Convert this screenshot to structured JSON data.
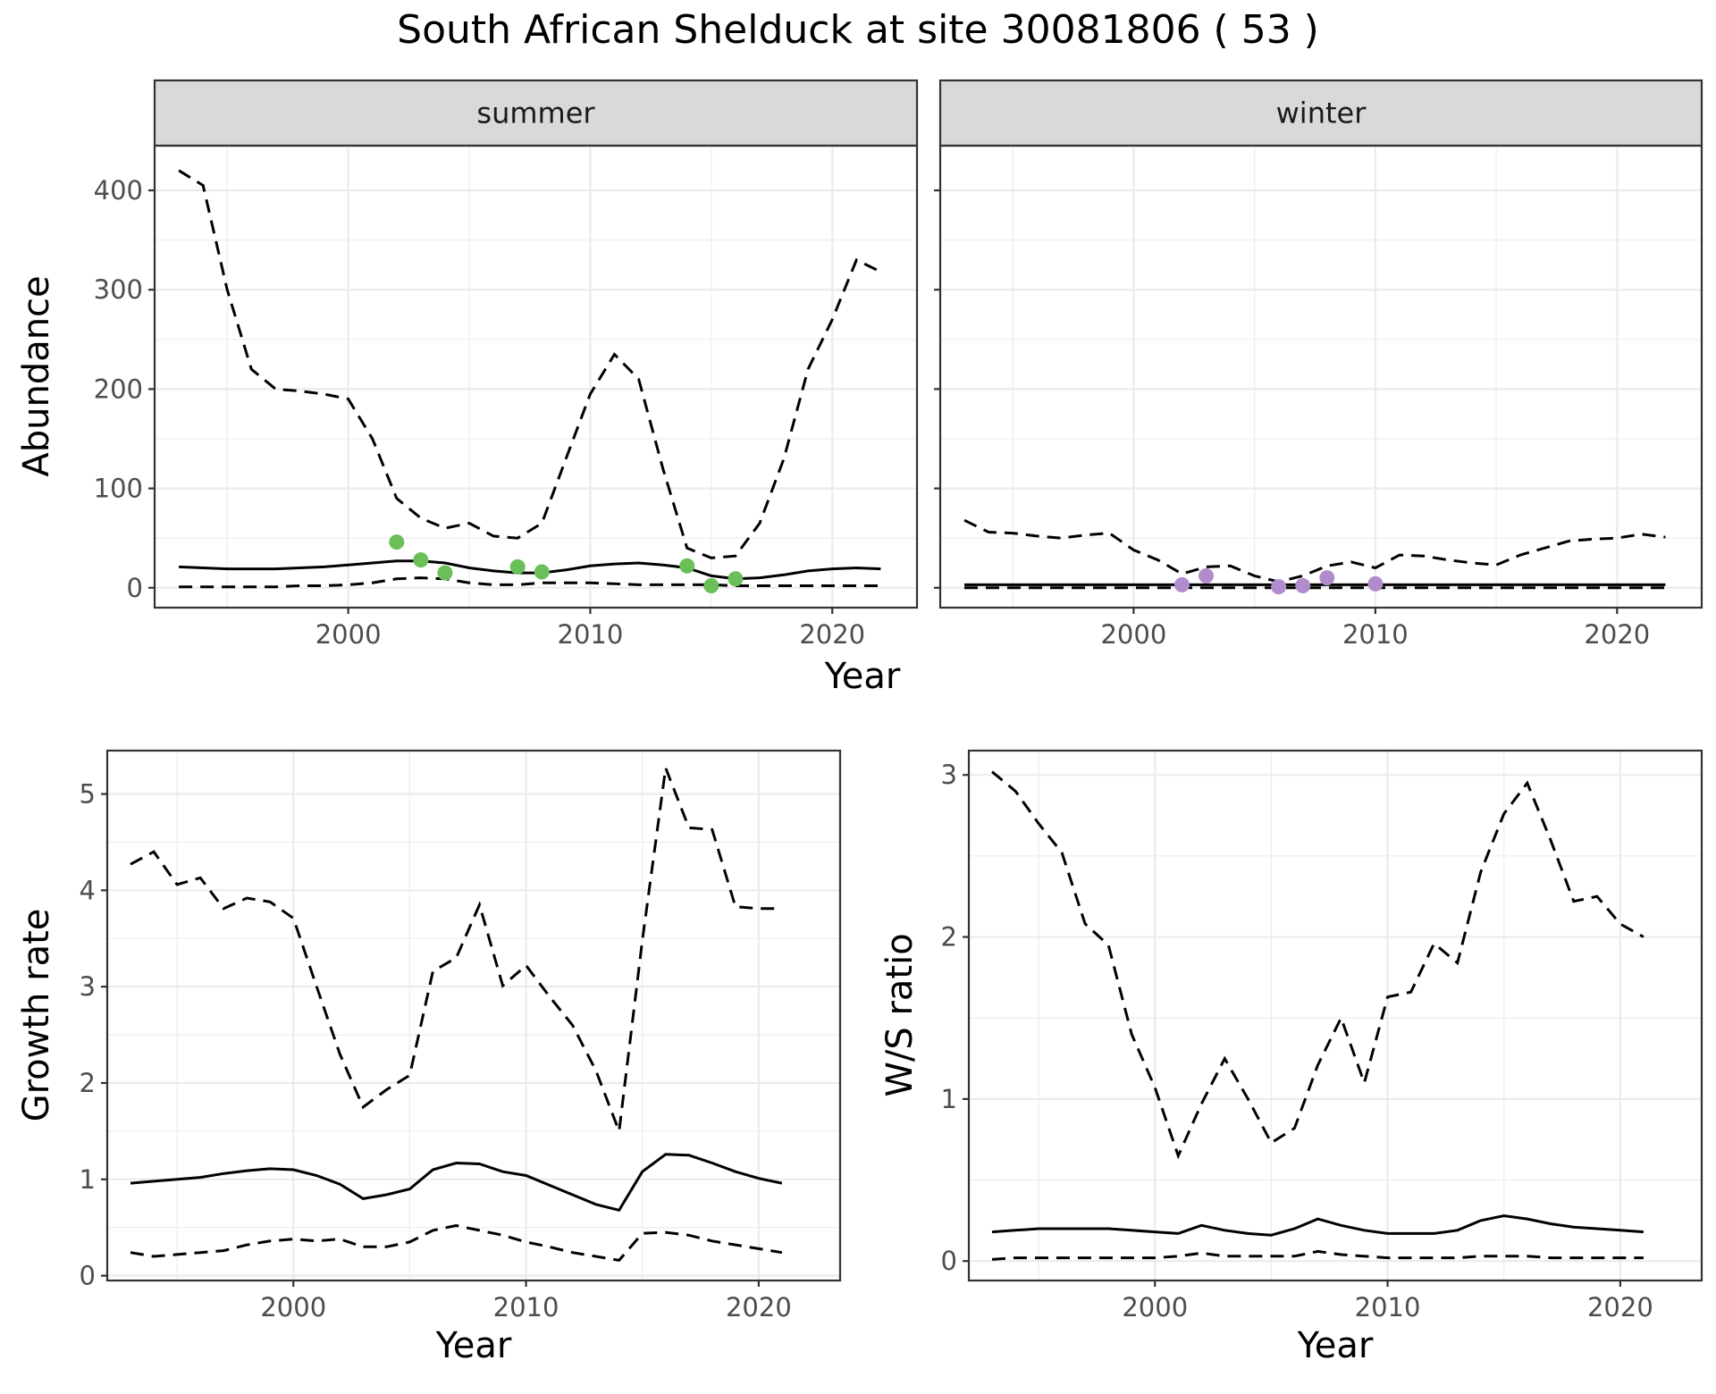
{
  "title": "South African Shelduck at site 30081806 ( 53 )",
  "colors": {
    "summer_points": "#6abf59",
    "winter_points": "#b08ccc",
    "strip_bg": "#d9d9d9"
  },
  "chart_data": [
    {
      "type": "line",
      "id": "abundance",
      "ylabel": "Abundance",
      "xlabel": "Year",
      "grid": true,
      "facets": [
        "summer",
        "winter"
      ],
      "xlim": [
        1992,
        2023.5
      ],
      "ylim": [
        -20,
        445
      ],
      "xticks": [
        2000,
        2010,
        2020
      ],
      "yticks": [
        0,
        100,
        200,
        300,
        400
      ],
      "panels": [
        {
          "facet": "summer",
          "point_color": "#6abf59",
          "x": [
            1993,
            1994,
            1995,
            1996,
            1997,
            1998,
            1999,
            2000,
            2001,
            2002,
            2003,
            2004,
            2005,
            2006,
            2007,
            2008,
            2009,
            2010,
            2011,
            2012,
            2013,
            2014,
            2015,
            2016,
            2017,
            2018,
            2019,
            2020,
            2021,
            2022
          ],
          "series": [
            {
              "style": "solid",
              "values": [
                21,
                20,
                19,
                19,
                19,
                20,
                21,
                23,
                25,
                27,
                27,
                25,
                20,
                17,
                15,
                15,
                18,
                22,
                24,
                25,
                23,
                20,
                12,
                9,
                10,
                13,
                17,
                19,
                20,
                19
              ]
            },
            {
              "style": "dashed",
              "values": [
                420,
                405,
                300,
                220,
                200,
                198,
                195,
                190,
                150,
                90,
                70,
                60,
                65,
                52,
                50,
                65,
                130,
                195,
                235,
                210,
                120,
                40,
                30,
                32,
                65,
                130,
                220,
                270,
                330,
                318
              ]
            },
            {
              "style": "dashed",
              "values": [
                1,
                1,
                1,
                1,
                1,
                2,
                2,
                3,
                5,
                9,
                10,
                9,
                5,
                3,
                3,
                5,
                5,
                5,
                4,
                3,
                3,
                3,
                3,
                2,
                2,
                2,
                2,
                2,
                2,
                2
              ]
            }
          ],
          "points": {
            "x": [
              2002,
              2003,
              2004,
              2007,
              2008,
              2014,
              2015,
              2016
            ],
            "y": [
              46,
              28,
              15,
              21,
              16,
              22,
              2,
              9
            ]
          }
        },
        {
          "facet": "winter",
          "point_color": "#b08ccc",
          "x": [
            1993,
            1994,
            1995,
            1996,
            1997,
            1998,
            1999,
            2000,
            2001,
            2002,
            2003,
            2004,
            2005,
            2006,
            2007,
            2008,
            2009,
            2010,
            2011,
            2012,
            2013,
            2014,
            2015,
            2016,
            2017,
            2018,
            2019,
            2020,
            2021,
            2022
          ],
          "series": [
            {
              "style": "solid",
              "values": [
                3,
                3,
                3,
                3,
                3,
                3,
                3,
                3,
                3,
                3,
                3,
                3,
                3,
                3,
                3,
                3,
                3,
                3,
                3,
                3,
                3,
                3,
                3,
                3,
                3,
                3,
                3,
                3,
                3,
                3
              ]
            },
            {
              "style": "dashed",
              "values": [
                68,
                56,
                55,
                52,
                50,
                53,
                55,
                38,
                28,
                14,
                21,
                22,
                12,
                6,
                12,
                22,
                26,
                20,
                33,
                32,
                28,
                25,
                23,
                33,
                40,
                47,
                49,
                50,
                54,
                51
              ]
            },
            {
              "style": "dashed",
              "values": [
                0,
                0,
                0,
                0,
                0,
                0,
                0,
                0,
                0,
                0,
                0,
                0,
                0,
                0,
                0,
                0,
                0,
                0,
                0,
                0,
                0,
                0,
                0,
                0,
                0,
                0,
                0,
                0,
                0,
                0
              ]
            }
          ],
          "points": {
            "x": [
              2002,
              2003,
              2006,
              2007,
              2008,
              2010
            ],
            "y": [
              3,
              12,
              1,
              2,
              10,
              4
            ]
          }
        }
      ]
    },
    {
      "type": "line",
      "id": "growth-rate",
      "ylabel": "Growth rate",
      "xlabel": "Year",
      "grid": true,
      "xlim": [
        1992,
        2023.5
      ],
      "ylim": [
        -0.05,
        5.45
      ],
      "xticks": [
        2000,
        2010,
        2020
      ],
      "yticks": [
        0,
        1,
        2,
        3,
        4,
        5
      ],
      "x": [
        1993,
        1994,
        1995,
        1996,
        1997,
        1998,
        1999,
        2000,
        2001,
        2002,
        2003,
        2004,
        2005,
        2006,
        2007,
        2008,
        2009,
        2010,
        2011,
        2012,
        2013,
        2014,
        2015,
        2016,
        2017,
        2018,
        2019,
        2020,
        2021
      ],
      "series": [
        {
          "style": "solid",
          "values": [
            0.96,
            0.98,
            1.0,
            1.02,
            1.06,
            1.09,
            1.11,
            1.1,
            1.04,
            0.95,
            0.8,
            0.84,
            0.9,
            1.1,
            1.17,
            1.16,
            1.08,
            1.04,
            0.94,
            0.84,
            0.74,
            0.68,
            1.08,
            1.26,
            1.25,
            1.17,
            1.08,
            1.01,
            0.96
          ]
        },
        {
          "style": "dashed",
          "values": [
            4.27,
            4.4,
            4.06,
            4.13,
            3.81,
            3.92,
            3.88,
            3.71,
            3.0,
            2.3,
            1.75,
            1.93,
            2.08,
            3.16,
            3.3,
            3.85,
            3.01,
            3.22,
            2.9,
            2.6,
            2.13,
            1.5,
            3.48,
            5.27,
            4.65,
            4.63,
            3.83,
            3.81,
            3.81
          ]
        },
        {
          "style": "dashed",
          "values": [
            0.24,
            0.2,
            0.22,
            0.24,
            0.26,
            0.32,
            0.36,
            0.38,
            0.36,
            0.38,
            0.3,
            0.3,
            0.35,
            0.47,
            0.52,
            0.47,
            0.42,
            0.35,
            0.3,
            0.24,
            0.2,
            0.16,
            0.44,
            0.45,
            0.42,
            0.36,
            0.32,
            0.28,
            0.24
          ]
        }
      ]
    },
    {
      "type": "line",
      "id": "ws-ratio",
      "ylabel": "W/S ratio",
      "xlabel": "Year",
      "grid": true,
      "xlim": [
        1992,
        2023.5
      ],
      "ylim": [
        -0.12,
        3.15
      ],
      "xticks": [
        2000,
        2010,
        2020
      ],
      "yticks": [
        0,
        1,
        2,
        3
      ],
      "x": [
        1993,
        1994,
        1995,
        1996,
        1997,
        1998,
        1999,
        2000,
        2001,
        2002,
        2003,
        2004,
        2005,
        2006,
        2007,
        2008,
        2009,
        2010,
        2011,
        2012,
        2013,
        2014,
        2015,
        2016,
        2017,
        2018,
        2019,
        2020,
        2021
      ],
      "series": [
        {
          "style": "solid",
          "values": [
            0.18,
            0.19,
            0.2,
            0.2,
            0.2,
            0.2,
            0.19,
            0.18,
            0.17,
            0.22,
            0.19,
            0.17,
            0.16,
            0.2,
            0.26,
            0.22,
            0.19,
            0.17,
            0.17,
            0.17,
            0.19,
            0.25,
            0.28,
            0.26,
            0.23,
            0.21,
            0.2,
            0.19,
            0.18
          ]
        },
        {
          "style": "dashed",
          "values": [
            3.02,
            2.9,
            2.7,
            2.52,
            2.08,
            1.95,
            1.4,
            1.07,
            0.65,
            0.97,
            1.25,
            1.0,
            0.73,
            0.82,
            1.21,
            1.5,
            1.1,
            1.63,
            1.66,
            1.96,
            1.84,
            2.4,
            2.76,
            2.95,
            2.6,
            2.22,
            2.25,
            2.08,
            2.0
          ]
        },
        {
          "style": "dashed",
          "values": [
            0.01,
            0.02,
            0.02,
            0.02,
            0.02,
            0.02,
            0.02,
            0.02,
            0.03,
            0.05,
            0.03,
            0.03,
            0.03,
            0.03,
            0.06,
            0.04,
            0.03,
            0.02,
            0.02,
            0.02,
            0.02,
            0.03,
            0.03,
            0.03,
            0.02,
            0.02,
            0.02,
            0.02,
            0.02
          ]
        }
      ]
    }
  ]
}
